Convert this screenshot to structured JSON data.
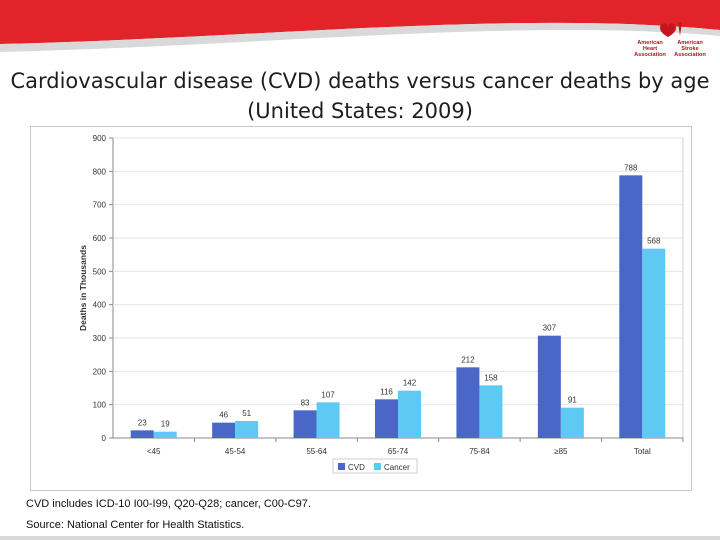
{
  "header": {
    "logo_left": "American\nHeart\nAssociation",
    "logo_right": "American\nStroke\nAssociation",
    "title_line1": "Cardiovascular disease (CVD) deaths versus cancer deaths by age",
    "title_line2": "(United States: 2009)"
  },
  "colors": {
    "banner_red": "#e2232a",
    "cvd": "#4a67c8",
    "cancer": "#5ec9f3"
  },
  "chart_data": {
    "type": "bar",
    "title": "",
    "xlabel": "",
    "ylabel": "Deaths in Thousands",
    "ylim": [
      0,
      900
    ],
    "yticks": [
      0,
      100,
      200,
      300,
      400,
      500,
      600,
      700,
      800,
      900
    ],
    "categories": [
      "<45",
      "45-54",
      "55-64",
      "65-74",
      "75-84",
      "≥85",
      "Total"
    ],
    "series": [
      {
        "name": "CVD",
        "values": [
          23,
          46,
          83,
          116,
          212,
          307,
          788
        ]
      },
      {
        "name": "Cancer",
        "values": [
          19,
          51,
          107,
          142,
          158,
          91,
          568
        ]
      }
    ],
    "legend_position": "bottom-center"
  },
  "footnote": "CVD includes ICD-10 I00-I99, Q20-Q28; cancer, C00-C97.",
  "source": "Source: National Center for Health Statistics."
}
